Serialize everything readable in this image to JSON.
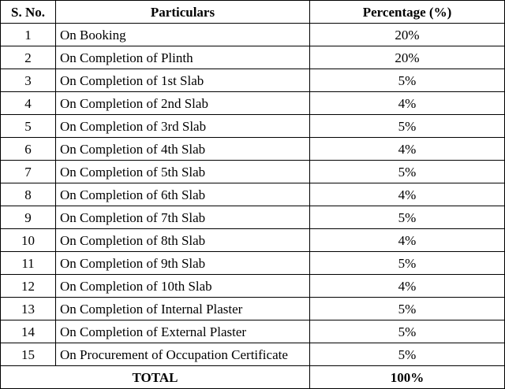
{
  "table": {
    "headers": {
      "sno": "S. No.",
      "particulars": "Particulars",
      "percentage": "Percentage (%)"
    },
    "rows": [
      {
        "sno": "1",
        "particulars": "On Booking",
        "percentage": "20%"
      },
      {
        "sno": "2",
        "particulars": "On Completion of Plinth",
        "percentage": "20%"
      },
      {
        "sno": "3",
        "particulars": "On Completion of 1st Slab",
        "percentage": "5%"
      },
      {
        "sno": "4",
        "particulars": "On Completion of 2nd Slab",
        "percentage": "4%"
      },
      {
        "sno": "5",
        "particulars": "On Completion of 3rd Slab",
        "percentage": "5%"
      },
      {
        "sno": "6",
        "particulars": "On Completion of 4th Slab",
        "percentage": "4%"
      },
      {
        "sno": "7",
        "particulars": "On Completion of 5th Slab",
        "percentage": "5%"
      },
      {
        "sno": "8",
        "particulars": "On Completion of 6th Slab",
        "percentage": "4%"
      },
      {
        "sno": "9",
        "particulars": "On Completion of 7th Slab",
        "percentage": "5%"
      },
      {
        "sno": "10",
        "particulars": "On Completion of 8th Slab",
        "percentage": "4%"
      },
      {
        "sno": "11",
        "particulars": "On Completion of 9th Slab",
        "percentage": "5%"
      },
      {
        "sno": "12",
        "particulars": "On Completion of 10th Slab",
        "percentage": "4%"
      },
      {
        "sno": "13",
        "particulars": "On Completion of Internal Plaster",
        "percentage": "5%"
      },
      {
        "sno": "14",
        "particulars": "On Completion of External Plaster",
        "percentage": "5%"
      },
      {
        "sno": "15",
        "particulars": "On Procurement of Occupation Certificate",
        "percentage": "5%"
      }
    ],
    "total": {
      "label": "TOTAL",
      "percentage": "100%"
    }
  }
}
